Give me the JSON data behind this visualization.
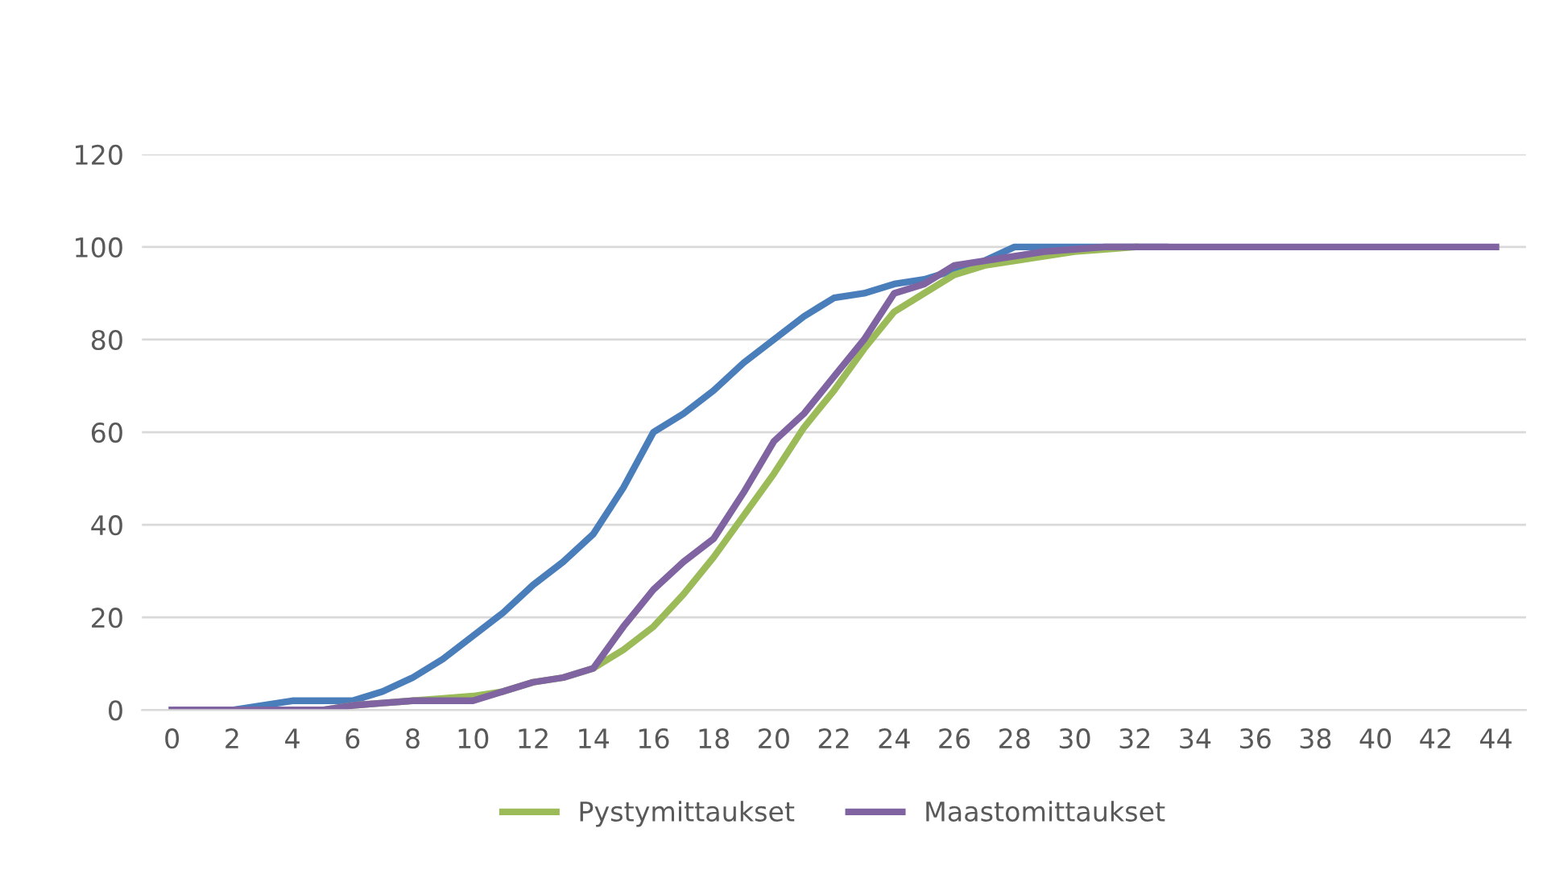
{
  "chart_data": {
    "type": "line",
    "x": [
      0,
      1,
      2,
      3,
      4,
      5,
      6,
      7,
      8,
      9,
      10,
      11,
      12,
      13,
      14,
      15,
      16,
      17,
      18,
      19,
      20,
      21,
      22,
      23,
      24,
      25,
      26,
      27,
      28,
      29,
      30,
      31,
      32,
      33,
      34,
      35,
      36,
      37,
      38,
      39,
      40,
      41,
      42,
      43,
      44
    ],
    "series": [
      {
        "color": "#4a7ebb",
        "values": [
          0,
          0,
          0,
          1,
          2,
          2,
          2,
          4,
          7,
          11,
          16,
          21,
          27,
          32,
          38,
          48,
          60,
          64,
          69,
          75,
          80,
          85,
          89,
          90,
          92,
          93,
          95,
          97,
          100,
          100,
          100,
          100,
          100,
          100,
          null,
          null,
          null,
          null,
          null,
          null,
          null,
          null,
          null,
          null,
          null
        ]
      },
      {
        "name": "Pystymittaukset",
        "color": "#9bbb59",
        "values": [
          null,
          null,
          null,
          null,
          0,
          0,
          1,
          1.5,
          2,
          2.5,
          3,
          4,
          6,
          7,
          9,
          13,
          18,
          25,
          33,
          42,
          51,
          61,
          69,
          78,
          86,
          90,
          94,
          96,
          97,
          98,
          99,
          99.5,
          100,
          null,
          null,
          null,
          null,
          null,
          null,
          null,
          null,
          null,
          null,
          null,
          null
        ]
      },
      {
        "name": "Maastomittaukset",
        "color": "#8064a2",
        "values": [
          0,
          0,
          0,
          0,
          0,
          0,
          1,
          1.5,
          2,
          2,
          2,
          4,
          6,
          7,
          9,
          18,
          26,
          32,
          37,
          47,
          58,
          64,
          72,
          80,
          90,
          92,
          96,
          97,
          98,
          99,
          99.5,
          100,
          100,
          100,
          100,
          100,
          100,
          100,
          100,
          100,
          100,
          100,
          100,
          100,
          100
        ]
      }
    ],
    "xlim": [
      -1,
      45
    ],
    "xticks": [
      0,
      2,
      4,
      6,
      8,
      10,
      12,
      14,
      16,
      18,
      20,
      22,
      24,
      26,
      28,
      30,
      32,
      34,
      36,
      38,
      40,
      42,
      44
    ],
    "ylim": [
      0,
      120
    ],
    "yticks": [
      0,
      20,
      40,
      60,
      80,
      100,
      120
    ],
    "grid": "y",
    "legend": "bottom",
    "marker": "none",
    "line_style": "solid"
  }
}
